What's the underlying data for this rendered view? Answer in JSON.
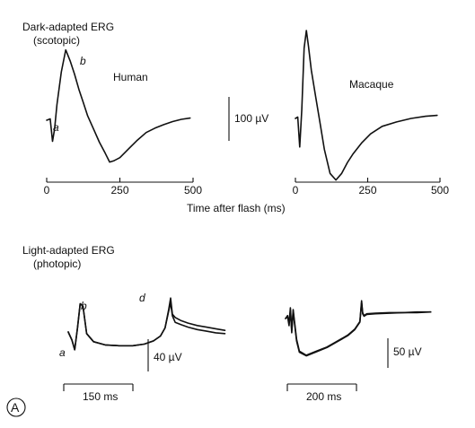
{
  "figure": {
    "panel_label": "A"
  },
  "chart_data": [
    {
      "type": "line",
      "title": "Dark-adapted ERG\n(scotopic)",
      "xlabel": "Time after flash (ms)",
      "xticks": [
        0,
        250,
        500
      ],
      "xlim": [
        0,
        500
      ],
      "scale_bar": "100 µV",
      "series": [
        {
          "name": "Human",
          "wave_labels": [
            "a",
            "b"
          ],
          "x": [
            0,
            12,
            20,
            27,
            35,
            50,
            65,
            80,
            95,
            110,
            125,
            140,
            160,
            180,
            200,
            215,
            230,
            250,
            280,
            310,
            340,
            370,
            400,
            430,
            460,
            490
          ],
          "y": [
            0,
            3,
            -48,
            -20,
            35,
            110,
            160,
            135,
            105,
            70,
            40,
            10,
            -20,
            -50,
            -75,
            -95,
            -92,
            -85,
            -65,
            -45,
            -28,
            -18,
            -10,
            -3,
            2,
            5
          ]
        },
        {
          "name": "Macaque",
          "x": [
            0,
            8,
            15,
            22,
            30,
            38,
            45,
            55,
            70,
            85,
            100,
            120,
            140,
            160,
            180,
            200,
            230,
            260,
            300,
            350,
            400,
            450,
            490
          ],
          "y": [
            0,
            3,
            -65,
            20,
            160,
            200,
            165,
            110,
            50,
            -10,
            -70,
            -125,
            -140,
            -125,
            -100,
            -80,
            -55,
            -35,
            -18,
            -8,
            0,
            5,
            7
          ]
        }
      ]
    },
    {
      "type": "line",
      "title": "Light-adapted ERG\n(photopic)",
      "wave_labels": [
        "a",
        "b",
        "d"
      ],
      "series": [
        {
          "scale_bar": "40 µV",
          "time_bar": "150 ms",
          "traces": [
            {
              "x": [
                0,
                8,
                14,
                20,
                26,
                32,
                40,
                55,
                80,
                110,
                140,
                165,
                185,
                200,
                210,
                218,
                222,
                226,
                232,
                245,
                260,
                280,
                300,
                320,
                340
              ],
              "y": [
                0,
                -10,
                -22,
                5,
                35,
                32,
                -2,
                -12,
                -16,
                -17,
                -17,
                -15,
                -11,
                -5,
                5,
                28,
                42,
                22,
                18,
                14,
                11,
                8,
                6,
                4,
                2
              ]
            },
            {
              "x": [
                0,
                8,
                14,
                20,
                26,
                32,
                40,
                55,
                80,
                110,
                140,
                165,
                185,
                200,
                210,
                218,
                222,
                226,
                232,
                245,
                260,
                280,
                300,
                320,
                340
              ],
              "y": [
                0,
                -10,
                -22,
                5,
                35,
                32,
                -2,
                -12,
                -16,
                -17,
                -17,
                -15,
                -11,
                -5,
                5,
                26,
                36,
                20,
                12,
                9,
                6,
                3,
                1,
                -1,
                -2
              ]
            }
          ]
        },
        {
          "scale_bar": "50 µV",
          "time_bar": "200 ms",
          "traces": [
            {
              "x": [
                0,
                6,
                10,
                14,
                18,
                22,
                26,
                32,
                40,
                60,
                90,
                120,
                150,
                180,
                200,
                215,
                220,
                223,
                227,
                235,
                260,
                300,
                340,
                380,
                420
              ],
              "y": [
                0,
                5,
                -8,
                18,
                -20,
                15,
                -5,
                -35,
                -55,
                -62,
                -55,
                -48,
                -38,
                -28,
                -18,
                -5,
                30,
                10,
                5,
                8,
                9,
                10,
                10,
                11,
                11
              ]
            },
            {
              "x": [
                0,
                6,
                10,
                14,
                18,
                22,
                26,
                32,
                40,
                60,
                90,
                120,
                150,
                180,
                200,
                215,
                220,
                223,
                227,
                235,
                260,
                300,
                340,
                380,
                420
              ],
              "y": [
                0,
                3,
                -12,
                14,
                -24,
                12,
                -8,
                -38,
                -57,
                -63,
                -56,
                -49,
                -39,
                -29,
                -19,
                -6,
                27,
                8,
                4,
                7,
                8,
                9,
                10,
                10,
                11
              ]
            }
          ]
        }
      ]
    }
  ]
}
